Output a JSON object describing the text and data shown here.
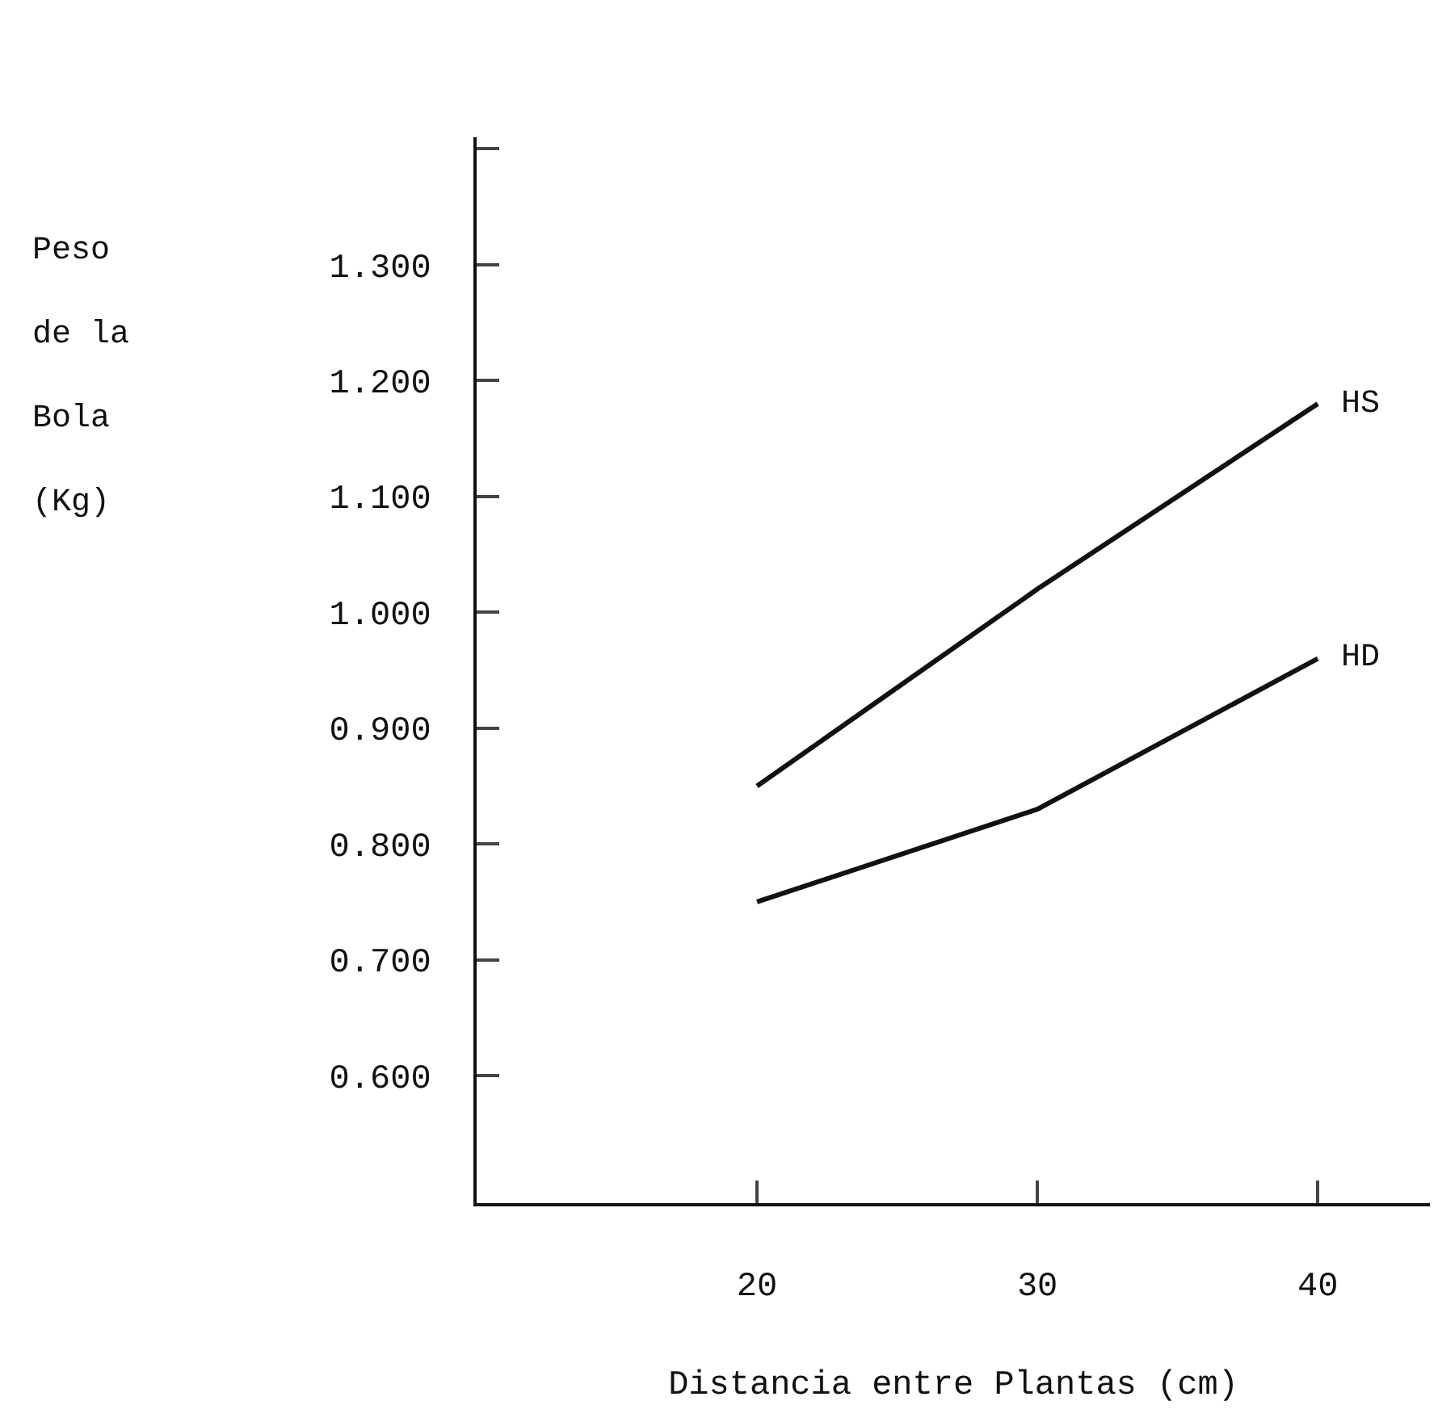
{
  "chart_data": {
    "type": "line",
    "xlabel": "Distancia entre Plantas (cm)",
    "ylabel": "Peso de la Bola (Kg)",
    "x": [
      20,
      30,
      40
    ],
    "series": [
      {
        "name": "HS",
        "color": "#111111",
        "values": [
          0.85,
          1.02,
          1.18
        ]
      },
      {
        "name": "HD",
        "color": "#111111",
        "values": [
          0.75,
          0.83,
          0.96
        ]
      }
    ],
    "xlim": [
      10,
      44
    ],
    "xticks": [
      20,
      30,
      40
    ],
    "ylim": [
      0.49,
      1.41
    ],
    "yticks": [
      {
        "value": 0.6,
        "label": "0.600"
      },
      {
        "value": 0.7,
        "label": "0.700"
      },
      {
        "value": 0.8,
        "label": "0.800"
      },
      {
        "value": 0.9,
        "label": "0.900"
      },
      {
        "value": 1.0,
        "label": "1.000"
      },
      {
        "value": 1.1,
        "label": "1.100"
      },
      {
        "value": 1.2,
        "label": "1.200"
      },
      {
        "value": 1.3,
        "label": "1.300"
      },
      {
        "value": 1.4,
        "label": null
      }
    ],
    "grid": false,
    "legend": false,
    "marker": "none",
    "line_style": "solid"
  }
}
